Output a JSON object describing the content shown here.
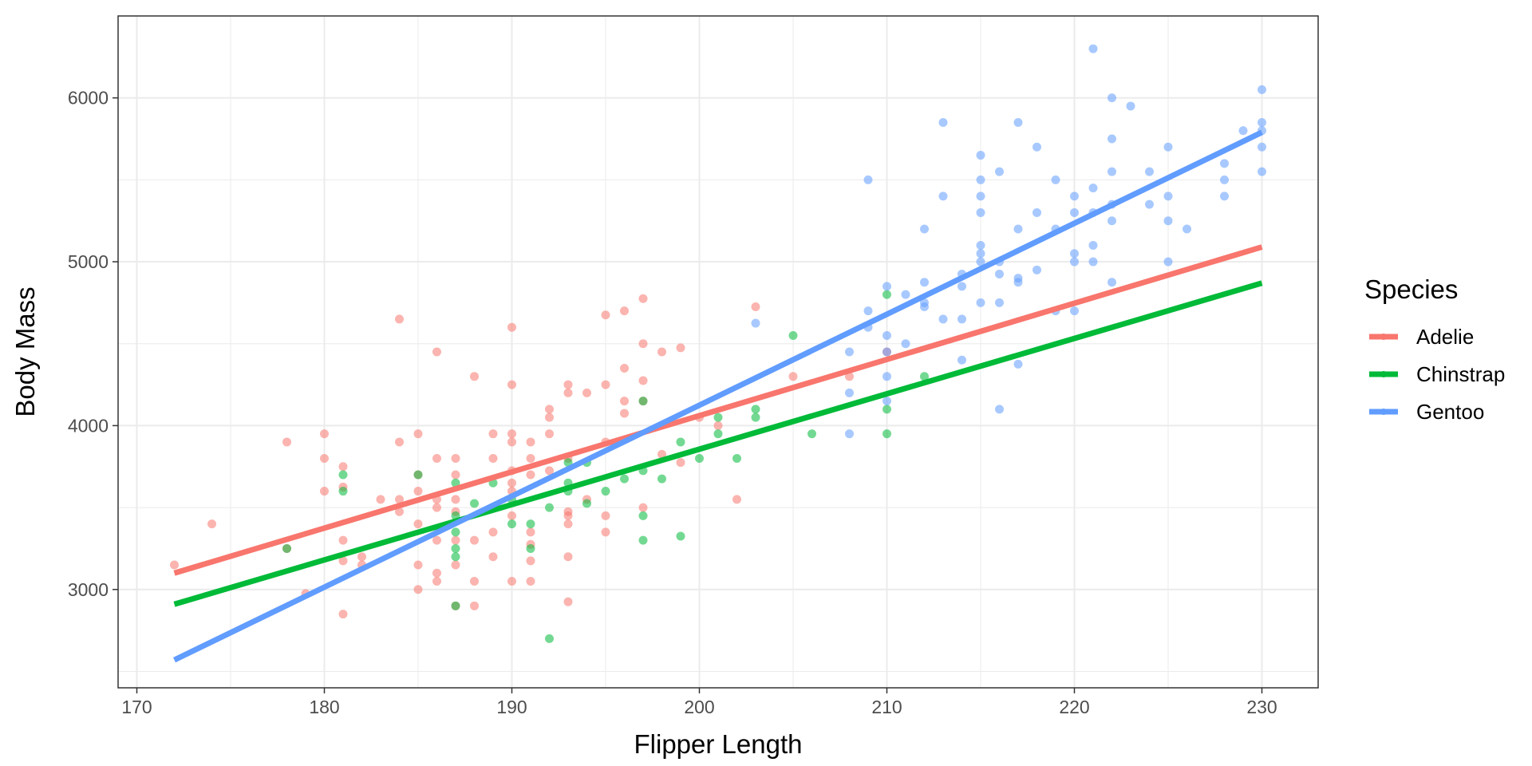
{
  "chart_data": {
    "type": "scatter",
    "title": "",
    "xlabel": "Flipper Length",
    "ylabel": "Body Mass",
    "xlim": [
      169,
      233
    ],
    "ylim": [
      2400,
      6500
    ],
    "xticks": [
      170,
      180,
      190,
      200,
      210,
      220,
      230
    ],
    "yticks": [
      3000,
      4000,
      5000,
      6000
    ],
    "x_tick_labels": [
      "170",
      "180",
      "190",
      "200",
      "210",
      "220",
      "230"
    ],
    "y_tick_labels": [
      "3000",
      "4000",
      "5000",
      "6000"
    ],
    "grid": true,
    "legend": {
      "title": "Species",
      "position": "right"
    },
    "series": [
      {
        "name": "Adelie",
        "color": "#F8766D",
        "trend": {
          "x": [
            172,
            230
          ],
          "y": [
            3100,
            5090
          ]
        },
        "points": [
          [
            172,
            3150
          ],
          [
            174,
            3400
          ],
          [
            178,
            3900
          ],
          [
            178,
            3250
          ],
          [
            179,
            2975
          ],
          [
            180,
            3950
          ],
          [
            180,
            3800
          ],
          [
            180,
            3600
          ],
          [
            181,
            3750
          ],
          [
            181,
            3625
          ],
          [
            181,
            3300
          ],
          [
            181,
            3175
          ],
          [
            181,
            2850
          ],
          [
            182,
            3200
          ],
          [
            182,
            3150
          ],
          [
            183,
            3550
          ],
          [
            184,
            4650
          ],
          [
            184,
            3900
          ],
          [
            184,
            3550
          ],
          [
            184,
            3475
          ],
          [
            185,
            3950
          ],
          [
            185,
            3700
          ],
          [
            185,
            3600
          ],
          [
            185,
            3400
          ],
          [
            185,
            3150
          ],
          [
            185,
            3000
          ],
          [
            186,
            4450
          ],
          [
            186,
            3800
          ],
          [
            186,
            3550
          ],
          [
            186,
            3500
          ],
          [
            186,
            3300
          ],
          [
            186,
            3100
          ],
          [
            186,
            3050
          ],
          [
            187,
            3800
          ],
          [
            187,
            3700
          ],
          [
            187,
            3550
          ],
          [
            187,
            3475
          ],
          [
            187,
            3300
          ],
          [
            187,
            3150
          ],
          [
            187,
            2900
          ],
          [
            188,
            4300
          ],
          [
            188,
            3300
          ],
          [
            188,
            3050
          ],
          [
            188,
            2900
          ],
          [
            189,
            3950
          ],
          [
            189,
            3800
          ],
          [
            189,
            3350
          ],
          [
            189,
            3200
          ],
          [
            190,
            4600
          ],
          [
            190,
            4250
          ],
          [
            190,
            3950
          ],
          [
            190,
            3900
          ],
          [
            190,
            3725
          ],
          [
            190,
            3650
          ],
          [
            190,
            3600
          ],
          [
            190,
            3450
          ],
          [
            190,
            3050
          ],
          [
            191,
            3900
          ],
          [
            191,
            3800
          ],
          [
            191,
            3700
          ],
          [
            191,
            3350
          ],
          [
            191,
            3275
          ],
          [
            191,
            3175
          ],
          [
            191,
            3050
          ],
          [
            192,
            4100
          ],
          [
            192,
            4050
          ],
          [
            192,
            3950
          ],
          [
            192,
            3725
          ],
          [
            193,
            4250
          ],
          [
            193,
            4200
          ],
          [
            193,
            3800
          ],
          [
            193,
            3475
          ],
          [
            193,
            3450
          ],
          [
            193,
            3400
          ],
          [
            193,
            3200
          ],
          [
            193,
            2925
          ],
          [
            194,
            4200
          ],
          [
            194,
            3550
          ],
          [
            195,
            4675
          ],
          [
            195,
            4250
          ],
          [
            195,
            3900
          ],
          [
            195,
            3450
          ],
          [
            195,
            3350
          ],
          [
            196,
            4700
          ],
          [
            196,
            4350
          ],
          [
            196,
            4150
          ],
          [
            196,
            4075
          ],
          [
            197,
            4775
          ],
          [
            197,
            4500
          ],
          [
            197,
            4275
          ],
          [
            197,
            4150
          ],
          [
            197,
            3500
          ],
          [
            198,
            4450
          ],
          [
            198,
            3825
          ],
          [
            199,
            4475
          ],
          [
            199,
            3775
          ],
          [
            200,
            4050
          ],
          [
            201,
            4000
          ],
          [
            202,
            3550
          ],
          [
            203,
            4725
          ],
          [
            205,
            4300
          ],
          [
            208,
            4300
          ],
          [
            210,
            4450
          ]
        ]
      },
      {
        "name": "Chinstrap",
        "color": "#00BA38",
        "trend": {
          "x": [
            172,
            230
          ],
          "y": [
            2910,
            4870
          ]
        },
        "points": [
          [
            178,
            3250
          ],
          [
            181,
            3700
          ],
          [
            181,
            3600
          ],
          [
            185,
            3700
          ],
          [
            187,
            3650
          ],
          [
            187,
            3450
          ],
          [
            187,
            3350
          ],
          [
            187,
            3250
          ],
          [
            187,
            3200
          ],
          [
            187,
            2900
          ],
          [
            188,
            3525
          ],
          [
            189,
            3650
          ],
          [
            190,
            3550
          ],
          [
            190,
            3400
          ],
          [
            191,
            3400
          ],
          [
            191,
            3250
          ],
          [
            192,
            3500
          ],
          [
            192,
            2700
          ],
          [
            193,
            3775
          ],
          [
            193,
            3650
          ],
          [
            193,
            3600
          ],
          [
            194,
            3775
          ],
          [
            194,
            3525
          ],
          [
            195,
            3600
          ],
          [
            196,
            3675
          ],
          [
            197,
            4150
          ],
          [
            197,
            3725
          ],
          [
            197,
            3450
          ],
          [
            197,
            3300
          ],
          [
            198,
            3675
          ],
          [
            199,
            3900
          ],
          [
            199,
            3325
          ],
          [
            200,
            3800
          ],
          [
            201,
            4050
          ],
          [
            201,
            3950
          ],
          [
            202,
            3800
          ],
          [
            203,
            4100
          ],
          [
            203,
            4050
          ],
          [
            205,
            4550
          ],
          [
            206,
            3950
          ],
          [
            210,
            4800
          ],
          [
            210,
            4100
          ],
          [
            210,
            3950
          ],
          [
            212,
            4300
          ]
        ]
      },
      {
        "name": "Gentoo",
        "color": "#619CFF",
        "trend": {
          "x": [
            172,
            230
          ],
          "y": [
            2570,
            5790
          ]
        },
        "points": [
          [
            203,
            4625
          ],
          [
            208,
            4450
          ],
          [
            208,
            4200
          ],
          [
            208,
            3950
          ],
          [
            209,
            5500
          ],
          [
            209,
            4700
          ],
          [
            209,
            4600
          ],
          [
            210,
            4850
          ],
          [
            210,
            4550
          ],
          [
            210,
            4450
          ],
          [
            210,
            4300
          ],
          [
            210,
            4150
          ],
          [
            211,
            4800
          ],
          [
            211,
            4500
          ],
          [
            212,
            5200
          ],
          [
            212,
            4875
          ],
          [
            212,
            4750
          ],
          [
            212,
            4725
          ],
          [
            213,
            5850
          ],
          [
            213,
            5400
          ],
          [
            213,
            4650
          ],
          [
            214,
            4925
          ],
          [
            214,
            4850
          ],
          [
            214,
            4650
          ],
          [
            214,
            4400
          ],
          [
            215,
            5650
          ],
          [
            215,
            5500
          ],
          [
            215,
            5400
          ],
          [
            215,
            5300
          ],
          [
            215,
            5100
          ],
          [
            215,
            5050
          ],
          [
            215,
            5000
          ],
          [
            215,
            4750
          ],
          [
            216,
            5550
          ],
          [
            216,
            5000
          ],
          [
            216,
            4925
          ],
          [
            216,
            4750
          ],
          [
            216,
            4100
          ],
          [
            217,
            5850
          ],
          [
            217,
            5200
          ],
          [
            217,
            4900
          ],
          [
            217,
            4875
          ],
          [
            217,
            4375
          ],
          [
            218,
            5700
          ],
          [
            218,
            5300
          ],
          [
            218,
            4950
          ],
          [
            219,
            5500
          ],
          [
            219,
            5200
          ],
          [
            219,
            4700
          ],
          [
            220,
            5400
          ],
          [
            220,
            5300
          ],
          [
            220,
            5050
          ],
          [
            220,
            5000
          ],
          [
            220,
            4700
          ],
          [
            221,
            6300
          ],
          [
            221,
            5450
          ],
          [
            221,
            5300
          ],
          [
            221,
            5100
          ],
          [
            221,
            5000
          ],
          [
            222,
            6000
          ],
          [
            222,
            5750
          ],
          [
            222,
            5550
          ],
          [
            222,
            5350
          ],
          [
            222,
            5250
          ],
          [
            222,
            4875
          ],
          [
            223,
            5950
          ],
          [
            224,
            5550
          ],
          [
            224,
            5350
          ],
          [
            225,
            5700
          ],
          [
            225,
            5400
          ],
          [
            225,
            5250
          ],
          [
            225,
            5000
          ],
          [
            226,
            5200
          ],
          [
            228,
            5600
          ],
          [
            228,
            5500
          ],
          [
            228,
            5400
          ],
          [
            229,
            5800
          ],
          [
            230,
            6050
          ],
          [
            230,
            5850
          ],
          [
            230,
            5800
          ],
          [
            230,
            5700
          ],
          [
            230,
            5550
          ]
        ]
      }
    ]
  }
}
